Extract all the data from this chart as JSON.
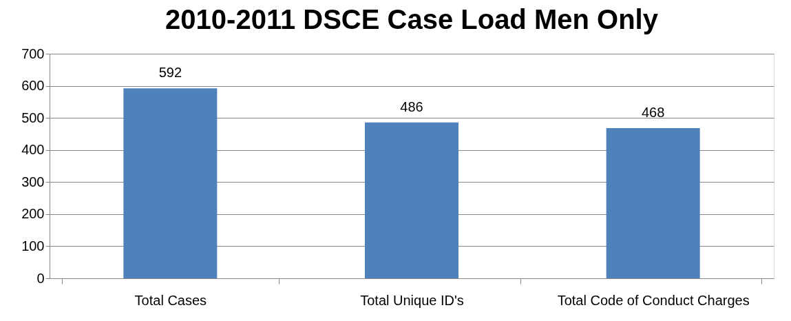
{
  "chart_data": {
    "type": "bar",
    "title": "2010-2011 DSCE Case Load Men Only",
    "categories": [
      "Total Cases",
      "Total Unique ID's",
      "Total Code of Conduct Charges"
    ],
    "values": [
      592,
      486,
      468
    ],
    "color": "#4f81bd",
    "ylim": [
      0,
      700
    ],
    "yticks": [
      0,
      100,
      200,
      300,
      400,
      500,
      600,
      700
    ],
    "grid": "y",
    "data_labels": true
  }
}
